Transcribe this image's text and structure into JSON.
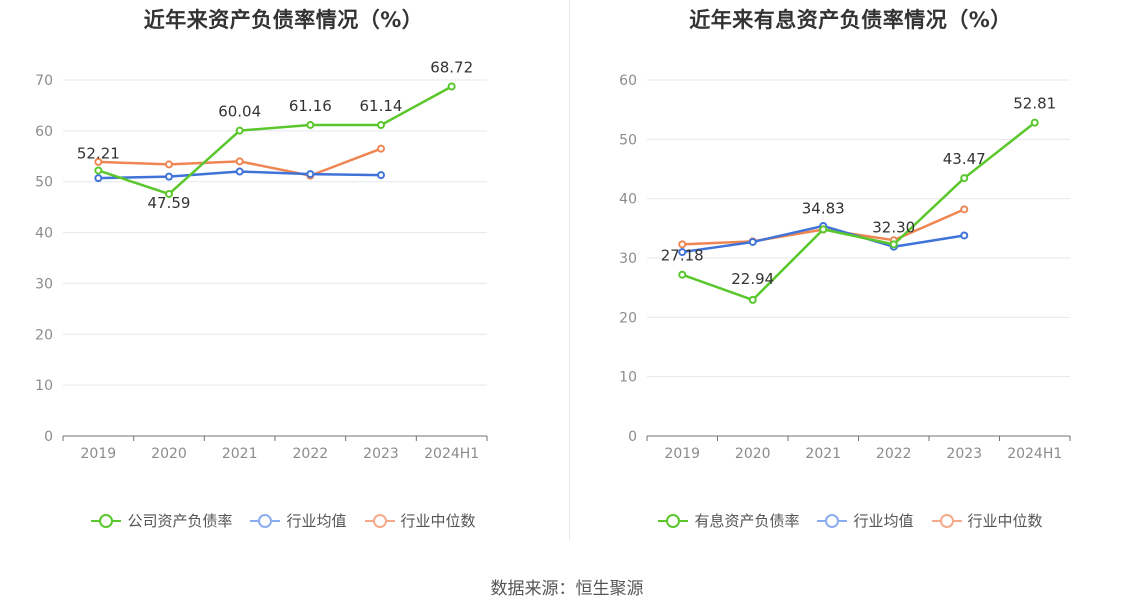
{
  "chart_data": [
    {
      "type": "line",
      "title": "近年来资产负债率情况（%）",
      "categories": [
        "2019",
        "2020",
        "2021",
        "2022",
        "2023",
        "2024H1"
      ],
      "ylim": [
        0,
        70
      ],
      "yticks": [
        0,
        10,
        20,
        30,
        40,
        50,
        60,
        70
      ],
      "series": [
        {
          "name": "公司资产负债率",
          "color": "#5ac72c",
          "values": [
            52.21,
            47.59,
            60.04,
            61.16,
            61.14,
            68.72
          ],
          "labels": [
            "52.21",
            "47.59",
            "60.04",
            "61.16",
            "61.14",
            "68.72"
          ]
        },
        {
          "name": "行业均值",
          "color": "#3f73d8",
          "values": [
            50.7,
            51.0,
            52.0,
            51.5,
            51.3,
            null
          ]
        },
        {
          "name": "行业中位数",
          "color": "#ee8654",
          "values": [
            53.9,
            53.4,
            54.0,
            51.2,
            56.5,
            null
          ]
        }
      ],
      "legend": [
        {
          "name": "公司资产负债率",
          "color": "#5ac72c"
        },
        {
          "name": "行业均值",
          "color": "#8aaef0"
        },
        {
          "name": "行业中位数",
          "color": "#f5aa8a"
        }
      ]
    },
    {
      "type": "line",
      "title": "近年来有息资产负债率情况（%）",
      "categories": [
        "2019",
        "2020",
        "2021",
        "2022",
        "2023",
        "2024H1"
      ],
      "ylim": [
        0,
        60
      ],
      "yticks": [
        0,
        10,
        20,
        30,
        40,
        50,
        60
      ],
      "series": [
        {
          "name": "有息资产负债率",
          "color": "#5ac72c",
          "values": [
            27.18,
            22.94,
            34.83,
            32.3,
            43.47,
            52.81
          ],
          "labels": [
            "27.18",
            "22.94",
            "34.83",
            "32.30",
            "43.47",
            "52.81"
          ]
        },
        {
          "name": "行业均值",
          "color": "#3f73d8",
          "values": [
            31.0,
            32.7,
            35.4,
            31.9,
            33.8,
            null
          ]
        },
        {
          "name": "行业中位数",
          "color": "#ee8654",
          "values": [
            32.3,
            32.8,
            34.8,
            33.0,
            38.2,
            null
          ]
        }
      ],
      "legend": [
        {
          "name": "有息资产负债率",
          "color": "#5ac72c"
        },
        {
          "name": "行业均值",
          "color": "#8aaef0"
        },
        {
          "name": "行业中位数",
          "color": "#f5aa8a"
        }
      ]
    }
  ],
  "source": "数据来源：恒生聚源"
}
